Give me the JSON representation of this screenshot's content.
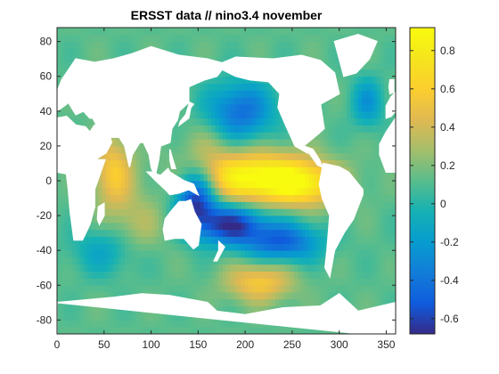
{
  "chart_data": {
    "type": "heatmap",
    "title": "ERSST data // nino3.4 november",
    "xlabel": "",
    "ylabel": "",
    "xlim": [
      0,
      360
    ],
    "ylim": [
      -88,
      88
    ],
    "x_ticks": [
      0,
      50,
      100,
      150,
      200,
      250,
      300,
      350
    ],
    "y_ticks": [
      -80,
      -60,
      -40,
      -20,
      0,
      20,
      40,
      60,
      80
    ],
    "x_tick_labels": [
      "0",
      "50",
      "100",
      "150",
      "200",
      "250",
      "300",
      "350"
    ],
    "y_tick_labels": [
      "-80",
      "-60",
      "-40",
      "-20",
      "0",
      "20",
      "40",
      "60",
      "80"
    ],
    "colorbar": {
      "range": [
        -0.68,
        0.92
      ],
      "ticks": [
        -0.6,
        -0.4,
        -0.2,
        0,
        0.2,
        0.4,
        0.6,
        0.8
      ],
      "tick_labels": [
        "-0.6",
        "-0.4",
        "-0.2",
        "0",
        "0.2",
        "0.4",
        "0.6",
        "0.8"
      ],
      "colormap": "parula"
    },
    "base_value": 0.12,
    "features": [
      {
        "lon": 215,
        "lat": 2,
        "slon": 45,
        "slat": 10,
        "amp": 0.85
      },
      {
        "lon": 265,
        "lat": -3,
        "slon": 25,
        "slat": 8,
        "amp": 0.4
      },
      {
        "lon": 60,
        "lat": 5,
        "slon": 15,
        "slat": 15,
        "amp": 0.45
      },
      {
        "lon": 85,
        "lat": -25,
        "slon": 20,
        "slat": 12,
        "amp": 0.2
      },
      {
        "lon": 148,
        "lat": -10,
        "slon": 15,
        "slat": 12,
        "amp": -0.8
      },
      {
        "lon": 185,
        "lat": -25,
        "slon": 25,
        "slat": 8,
        "amp": -0.75
      },
      {
        "lon": 240,
        "lat": -35,
        "slon": 28,
        "slat": 8,
        "amp": -0.6
      },
      {
        "lon": 195,
        "lat": 40,
        "slon": 25,
        "slat": 12,
        "amp": -0.55
      },
      {
        "lon": 330,
        "lat": 45,
        "slon": 12,
        "slat": 10,
        "amp": -0.35
      },
      {
        "lon": 215,
        "lat": -58,
        "slon": 25,
        "slat": 8,
        "amp": 0.45
      },
      {
        "lon": 160,
        "lat": 20,
        "slon": 20,
        "slat": 10,
        "amp": 0.15
      },
      {
        "lon": 50,
        "lat": -40,
        "slon": 25,
        "slat": 10,
        "amp": -0.25
      }
    ],
    "land": [
      {
        "name": "north-america",
        "points": [
          [
            168,
            66
          ],
          [
            190,
            71
          ],
          [
            230,
            70
          ],
          [
            260,
            72
          ],
          [
            280,
            69
          ],
          [
            295,
            62
          ],
          [
            300,
            50
          ],
          [
            280,
            44
          ],
          [
            284,
            30
          ],
          [
            278,
            27
          ],
          [
            262,
            20
          ],
          [
            266,
            16
          ],
          [
            253,
            20
          ],
          [
            243,
            32
          ],
          [
            235,
            42
          ],
          [
            237,
            50
          ],
          [
            225,
            57
          ],
          [
            205,
            58
          ],
          [
            190,
            60
          ]
        ]
      },
      {
        "name": "central-america",
        "points": [
          [
            262,
            20
          ],
          [
            268,
            16
          ],
          [
            277,
            9
          ],
          [
            282,
            8
          ],
          [
            279,
            12
          ],
          [
            272,
            18
          ]
        ]
      },
      {
        "name": "greenland",
        "points": [
          [
            305,
            60
          ],
          [
            318,
            62
          ],
          [
            332,
            70
          ],
          [
            340,
            80
          ],
          [
            320,
            84
          ],
          [
            295,
            80
          ],
          [
            300,
            70
          ]
        ]
      },
      {
        "name": "south-america",
        "points": [
          [
            283,
            10
          ],
          [
            300,
            8
          ],
          [
            310,
            5
          ],
          [
            325,
            -5
          ],
          [
            325,
            -8
          ],
          [
            315,
            -22
          ],
          [
            305,
            -30
          ],
          [
            295,
            -40
          ],
          [
            290,
            -55
          ],
          [
            285,
            -50
          ],
          [
            287,
            -40
          ],
          [
            290,
            -20
          ],
          [
            282,
            -10
          ],
          [
            279,
            -2
          ]
        ]
      },
      {
        "name": "africa",
        "points": [
          [
            343,
            15
          ],
          [
            350,
            5
          ],
          [
            0,
            5
          ],
          [
            10,
            4
          ],
          [
            12,
            -5
          ],
          [
            14,
            -18
          ],
          [
            18,
            -34
          ],
          [
            27,
            -34
          ],
          [
            35,
            -25
          ],
          [
            40,
            -15
          ],
          [
            40,
            -5
          ],
          [
            51,
            12
          ],
          [
            43,
            12
          ],
          [
            35,
            28
          ],
          [
            30,
            31
          ],
          [
            20,
            32
          ],
          [
            10,
            37
          ],
          [
            0,
            36
          ],
          [
            350,
            28
          ],
          [
            343,
            21
          ]
        ]
      },
      {
        "name": "eurasia",
        "points": [
          [
            350,
            36
          ],
          [
            350,
            43
          ],
          [
            355,
            48
          ],
          [
            0,
            51
          ],
          [
            5,
            58
          ],
          [
            10,
            62
          ],
          [
            20,
            70
          ],
          [
            40,
            68
          ],
          [
            60,
            70
          ],
          [
            80,
            73
          ],
          [
            100,
            77
          ],
          [
            130,
            72
          ],
          [
            160,
            70
          ],
          [
            180,
            67
          ],
          [
            170,
            60
          ],
          [
            157,
            58
          ],
          [
            140,
            54
          ],
          [
            140,
            45
          ],
          [
            130,
            40
          ],
          [
            128,
            35
          ],
          [
            122,
            30
          ],
          [
            120,
            22
          ],
          [
            110,
            20
          ],
          [
            108,
            12
          ],
          [
            104,
            2
          ],
          [
            100,
            8
          ],
          [
            98,
            15
          ],
          [
            92,
            22
          ],
          [
            88,
            22
          ],
          [
            80,
            15
          ],
          [
            77,
            8
          ],
          [
            72,
            20
          ],
          [
            66,
            25
          ],
          [
            57,
            25
          ],
          [
            52,
            28
          ],
          [
            50,
            30
          ],
          [
            44,
            30
          ],
          [
            38,
            36
          ],
          [
            35,
            36
          ],
          [
            28,
            40
          ],
          [
            20,
            38
          ],
          [
            12,
            45
          ],
          [
            10,
            44
          ],
          [
            0,
            40
          ],
          [
            355,
            37
          ]
        ]
      },
      {
        "name": "arabia",
        "points": [
          [
            35,
            28
          ],
          [
            43,
            13
          ],
          [
            52,
            16
          ],
          [
            58,
            22
          ],
          [
            56,
            26
          ],
          [
            48,
            30
          ],
          [
            40,
            32
          ]
        ]
      },
      {
        "name": "madagascar",
        "points": [
          [
            44,
            -15
          ],
          [
            50,
            -13
          ],
          [
            50,
            -20
          ],
          [
            45,
            -25
          ],
          [
            43,
            -22
          ]
        ]
      },
      {
        "name": "australia",
        "points": [
          [
            115,
            -22
          ],
          [
            122,
            -17
          ],
          [
            130,
            -12
          ],
          [
            137,
            -12
          ],
          [
            142,
            -11
          ],
          [
            146,
            -18
          ],
          [
            153,
            -25
          ],
          [
            150,
            -37
          ],
          [
            145,
            -39
          ],
          [
            135,
            -33
          ],
          [
            125,
            -33
          ],
          [
            115,
            -34
          ],
          [
            113,
            -28
          ]
        ]
      },
      {
        "name": "japan",
        "points": [
          [
            130,
            32
          ],
          [
            140,
            36
          ],
          [
            142,
            42
          ],
          [
            145,
            44
          ],
          [
            141,
            45
          ],
          [
            137,
            38
          ],
          [
            131,
            34
          ]
        ]
      },
      {
        "name": "borneo-indonesia",
        "points": [
          [
            96,
            5
          ],
          [
            105,
            0
          ],
          [
            115,
            -5
          ],
          [
            120,
            -8
          ],
          [
            130,
            -7
          ],
          [
            140,
            -5
          ],
          [
            150,
            -8
          ],
          [
            145,
            -2
          ],
          [
            135,
            0
          ],
          [
            120,
            5
          ],
          [
            118,
            7
          ],
          [
            110,
            3
          ],
          [
            100,
            5
          ]
        ]
      },
      {
        "name": "philippines",
        "points": [
          [
            120,
            18
          ],
          [
            122,
            14
          ],
          [
            126,
            7
          ],
          [
            122,
            7
          ],
          [
            120,
            12
          ]
        ]
      },
      {
        "name": "new-zealand",
        "points": [
          [
            172,
            -35
          ],
          [
            178,
            -38
          ],
          [
            175,
            -41
          ],
          [
            170,
            -46
          ],
          [
            167,
            -46
          ],
          [
            172,
            -40
          ]
        ]
      },
      {
        "name": "uk",
        "points": [
          [
            354,
            50
          ],
          [
            358,
            51
          ],
          [
            358,
            58
          ],
          [
            354,
            58
          ],
          [
            353,
            54
          ]
        ]
      },
      {
        "name": "antarctica",
        "points": [
          [
            0,
            -70
          ],
          [
            60,
            -67
          ],
          [
            90,
            -65
          ],
          [
            120,
            -66
          ],
          [
            160,
            -70
          ],
          [
            170,
            -75
          ],
          [
            200,
            -77
          ],
          [
            240,
            -73
          ],
          [
            280,
            -72
          ],
          [
            300,
            -65
          ],
          [
            320,
            -75
          ],
          [
            360,
            -70
          ],
          [
            360,
            -90
          ],
          [
            0,
            -90
          ]
        ]
      }
    ]
  }
}
